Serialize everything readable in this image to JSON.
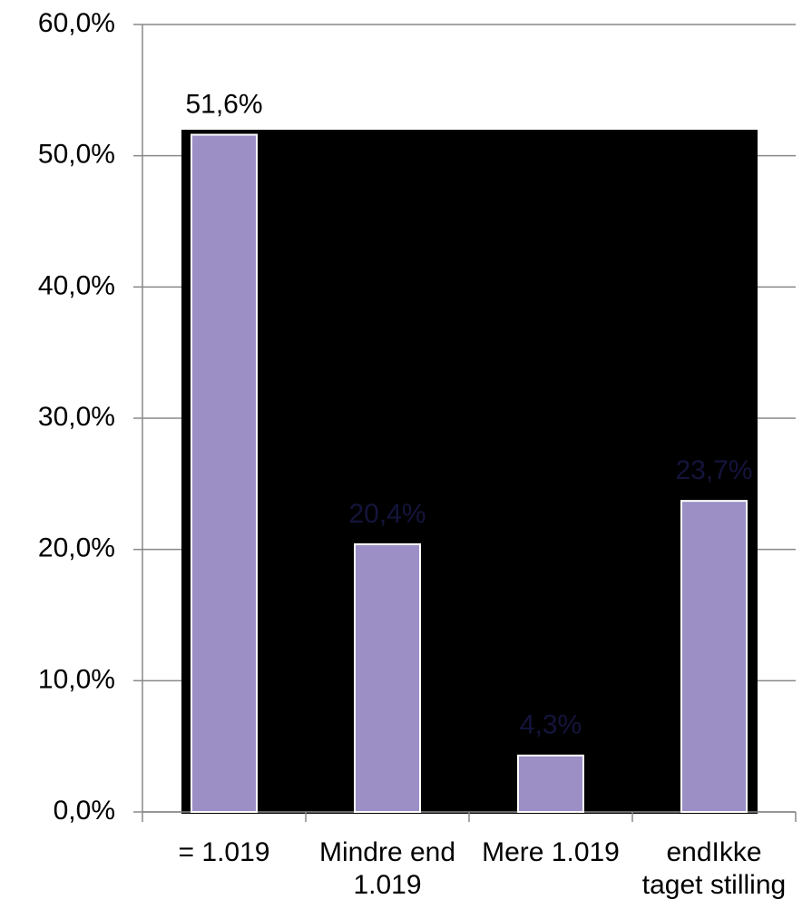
{
  "chart_data": {
    "type": "bar",
    "categories": [
      "= 1.019",
      "Mindre end 1.019",
      "Mere 1.019",
      "endIkke taget stilling"
    ],
    "values": [
      51.6,
      20.4,
      4.3,
      23.7
    ],
    "value_labels": [
      "51,6%",
      "20,4%",
      "4,3%",
      "23,7%"
    ],
    "color": "#9b8fc6",
    "ylim": [
      0,
      60
    ],
    "yticks": [
      {
        "value": 0,
        "label": "0,0%"
      },
      {
        "value": 10,
        "label": "10,0%"
      },
      {
        "value": 20,
        "label": "20,0%"
      },
      {
        "value": 30,
        "label": "30,0%"
      },
      {
        "value": 40,
        "label": "40,0%"
      },
      {
        "value": 50,
        "label": "50,0%"
      },
      {
        "value": 60,
        "label": "60,0%"
      }
    ],
    "grid": true
  }
}
